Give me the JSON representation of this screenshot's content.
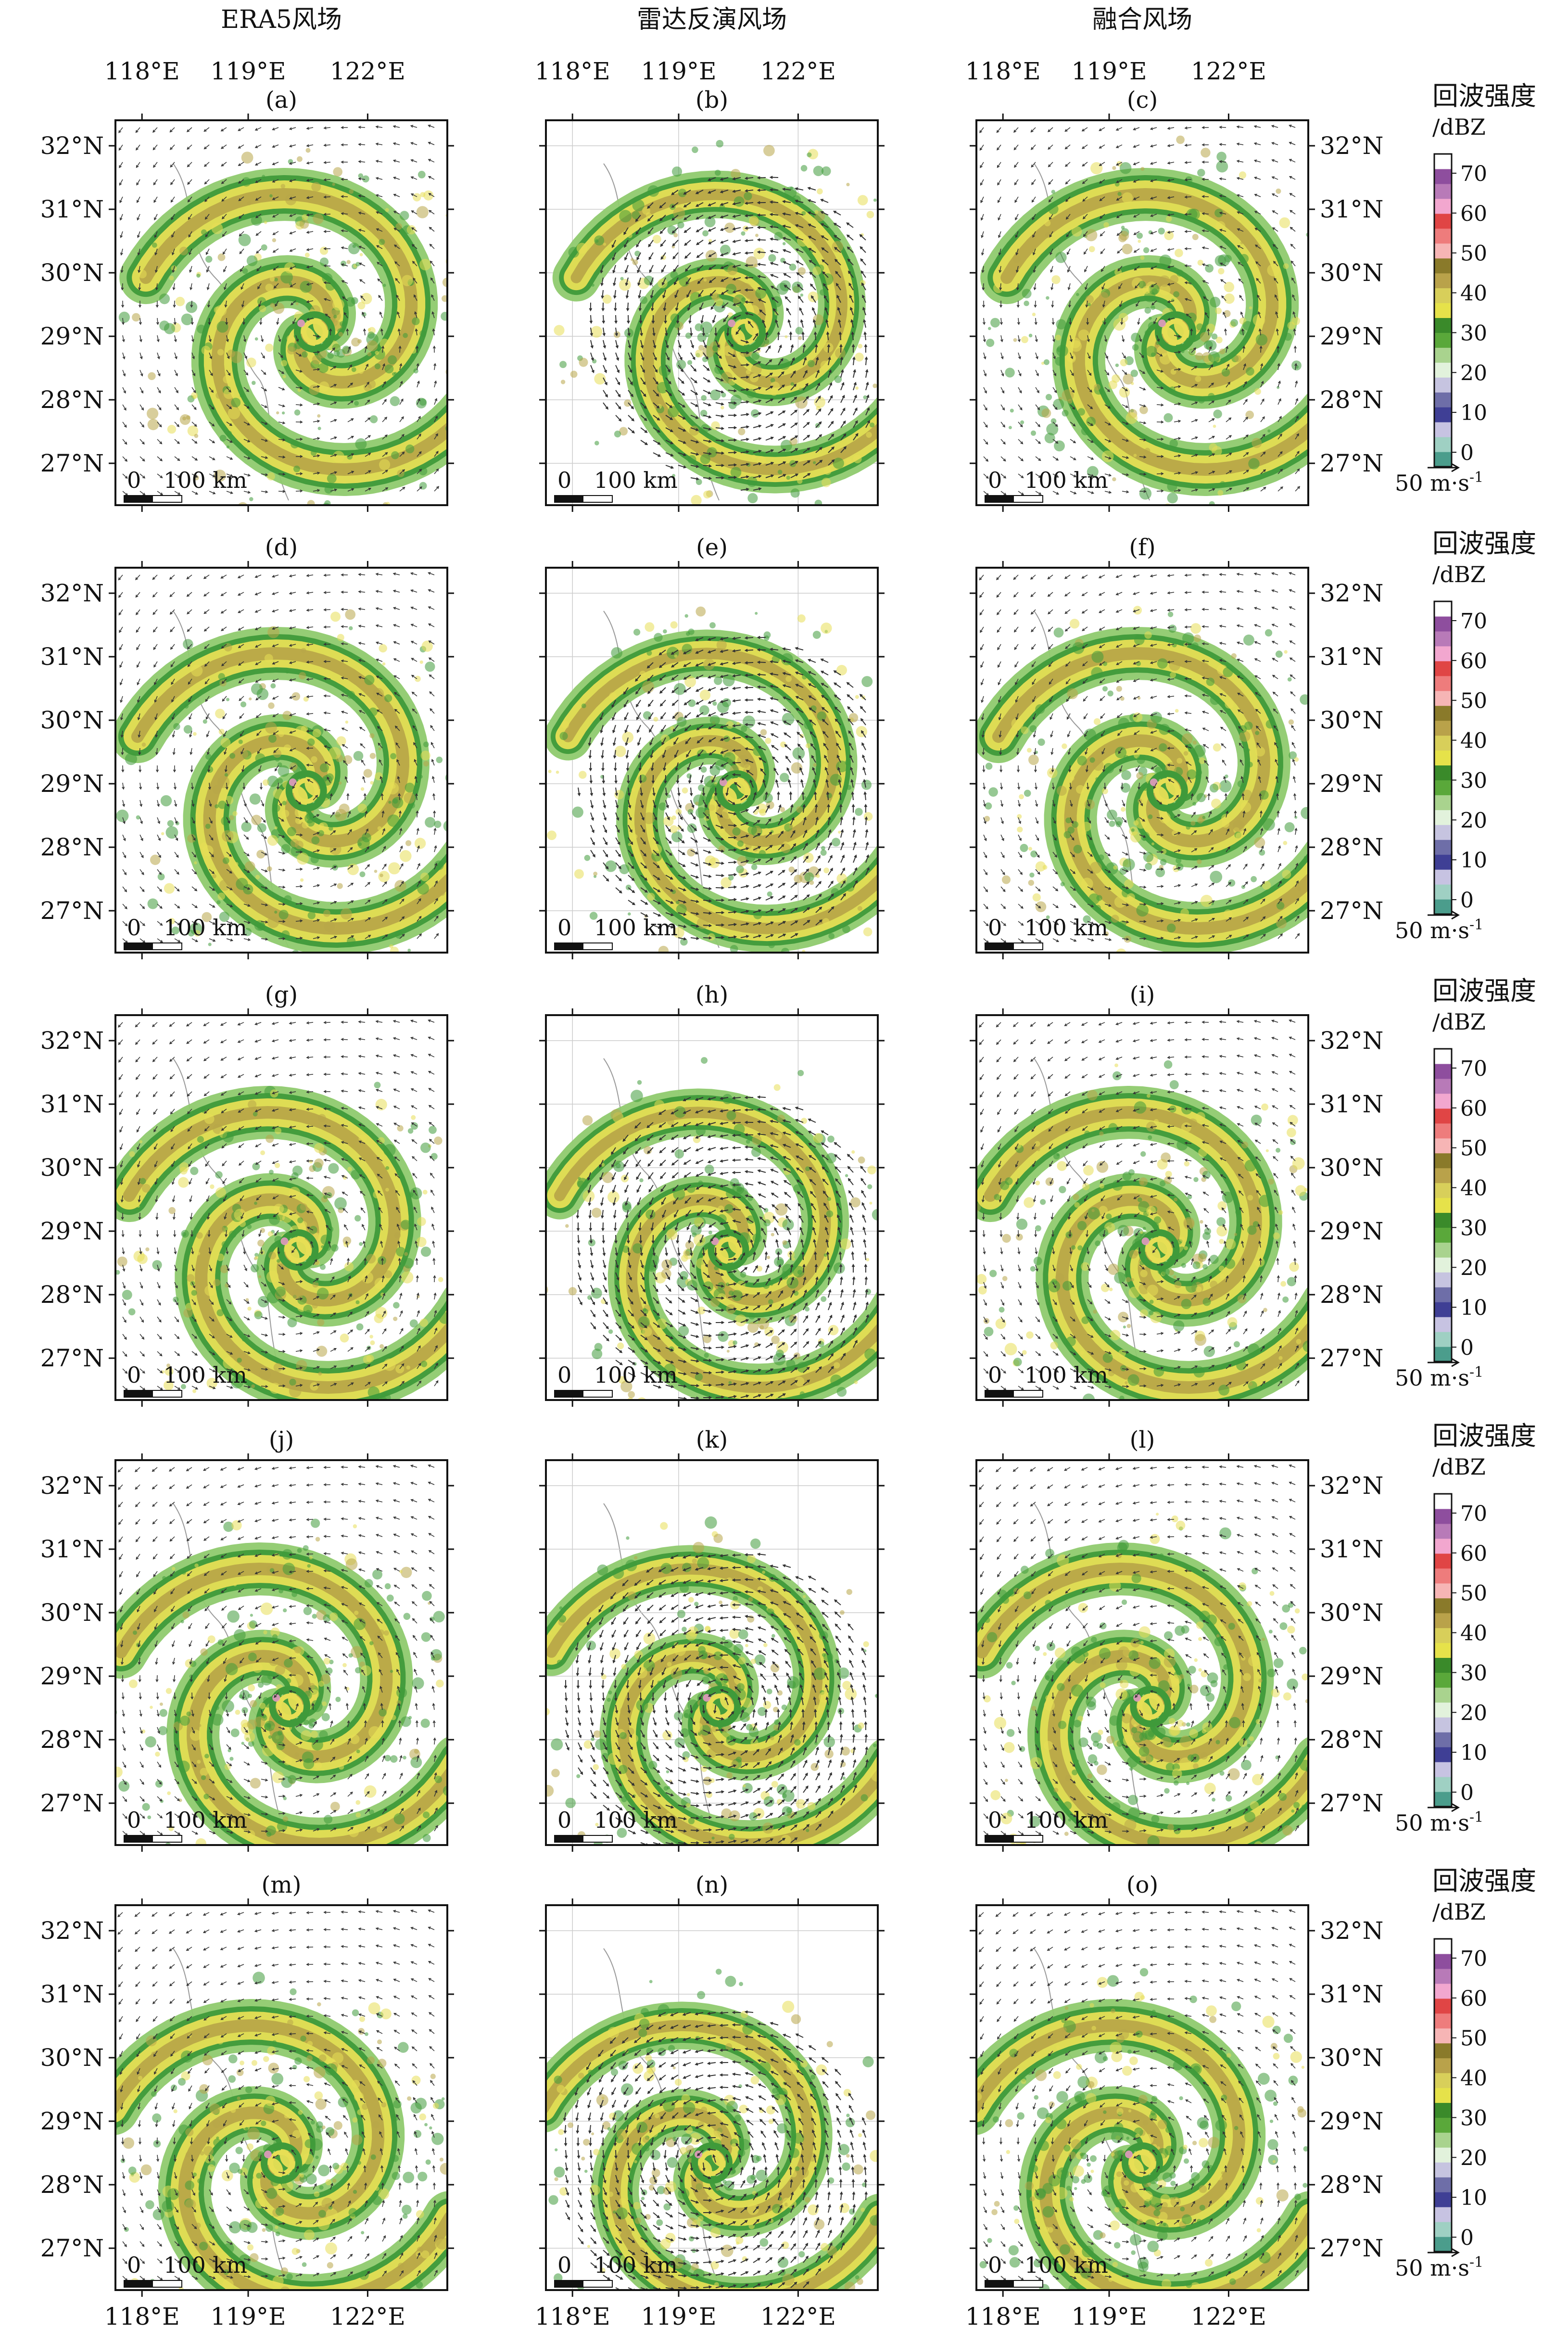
{
  "column_titles": [
    "ERA5风场",
    "雷达反演风场",
    "融合风场"
  ],
  "panel_labels": [
    [
      "(a)",
      "(b)",
      "(c)"
    ],
    [
      "(d)",
      "(e)",
      "(f)"
    ],
    [
      "(g)",
      "(h)",
      "(i)"
    ],
    [
      "(j)",
      "(k)",
      "(l)"
    ],
    [
      "(m)",
      "(n)",
      "(o)"
    ]
  ],
  "lon_ticks": [
    "118°E",
    "119°E",
    "122°E"
  ],
  "lat_ticks": [
    "32°N",
    "31°N",
    "30°N",
    "29°N",
    "28°N",
    "27°N"
  ],
  "scale_bar": {
    "zero": "0",
    "label": "100 km"
  },
  "colorbar": {
    "title_line1": "回波强度",
    "title_line2": "/dBZ",
    "tick_labels": [
      "70",
      "60",
      "50",
      "40",
      "30",
      "20",
      "10",
      "0"
    ],
    "colors_bottom_to_top": [
      "#4b9d8c",
      "#9fd0c3",
      "#c7c3e2",
      "#3f3f95",
      "#6e6ea8",
      "#c6c4e0",
      "#e2f2dc",
      "#a9d38e",
      "#5aa83a",
      "#3a8a2a",
      "#e6e24a",
      "#d8cf5a",
      "#b9a24a",
      "#8a7a2a",
      "#f6b5b5",
      "#ee7c7c",
      "#e04545",
      "#f2a7cf",
      "#b87ab8",
      "#8e4e9e",
      "#ffffff"
    ]
  },
  "wind_reference": {
    "label": "50 m·s",
    "superscript": "-1"
  },
  "colors": {
    "land": "#ffffff",
    "light_green": "#8fca6e",
    "dark_green": "#3f9a3a",
    "yellow": "#e7df55",
    "olive": "#b8a648",
    "pink": "#ec9ac8",
    "arrow": "#333333"
  }
}
